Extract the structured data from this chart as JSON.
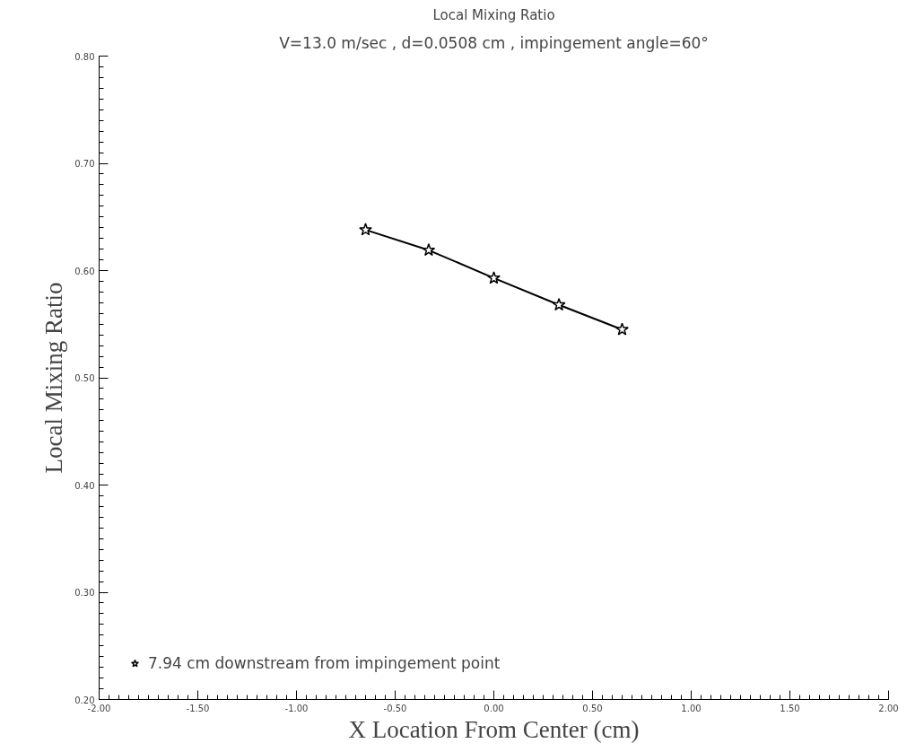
{
  "chart_data": {
    "type": "line",
    "title": "Local Mixing Ratio",
    "subtitle": "V=13.0 m/sec , d=0.0508 cm , impingement angle=60°",
    "xlabel": "X Location From Center (cm)",
    "ylabel": "Local Mixing Ratio",
    "x": [
      -0.65,
      -0.33,
      0.0,
      0.33,
      0.65
    ],
    "series": [
      {
        "name": "7.94 cm downstream from impingement point",
        "color": "#000000",
        "values": [
          0.638,
          0.619,
          0.593,
          0.568,
          0.545
        ]
      }
    ],
    "xlim": [
      -2.0,
      2.0
    ],
    "ylim": [
      0.2,
      0.8
    ],
    "xticks": [
      {
        "value": -2.0,
        "label": "-2.00"
      },
      {
        "value": -1.5,
        "label": "-1.50"
      },
      {
        "value": -1.0,
        "label": "-1.00"
      },
      {
        "value": -0.5,
        "label": "-0.50"
      },
      {
        "value": 0.0,
        "label": "0.00"
      },
      {
        "value": 0.5,
        "label": "0.50"
      },
      {
        "value": 1.0,
        "label": "1.00"
      },
      {
        "value": 1.5,
        "label": "1.50"
      },
      {
        "value": 2.0,
        "label": "2.00"
      }
    ],
    "yticks": [
      {
        "value": 0.2,
        "label": "0.20"
      },
      {
        "value": 0.3,
        "label": "0.30"
      },
      {
        "value": 0.4,
        "label": "0.40"
      },
      {
        "value": 0.5,
        "label": "0.50"
      },
      {
        "value": 0.6,
        "label": "0.60"
      },
      {
        "value": 0.7,
        "label": "0.70"
      },
      {
        "value": 0.8,
        "label": "0.80"
      }
    ],
    "marker": "star",
    "line_style": "solid",
    "grid": false,
    "legend": "bottom left"
  }
}
